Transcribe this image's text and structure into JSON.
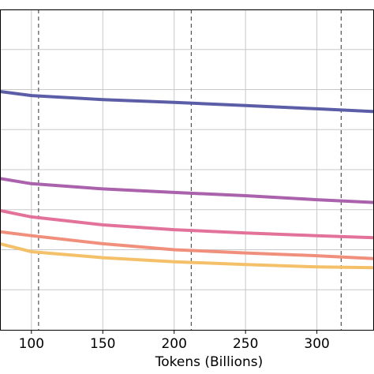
{
  "chart_data": {
    "type": "line",
    "title": "",
    "xlabel": "Tokens (Billions)",
    "ylabel": "",
    "xlim": [
      78,
      340
    ],
    "ylim": [
      0,
      8
    ],
    "x_ticks": [
      100,
      150,
      200,
      250,
      300
    ],
    "y_gridlines": [
      1,
      2,
      3,
      4,
      5,
      6,
      7,
      8
    ],
    "y_ticks_visible": false,
    "grid": true,
    "legend": "none",
    "vlines": [
      105,
      212,
      317
    ],
    "vline_color": "#555555",
    "series": [
      {
        "color": "#5b5ea6",
        "x": [
          78,
          100,
          150,
          200,
          250,
          300,
          340
        ],
        "y": [
          5.95,
          5.85,
          5.75,
          5.68,
          5.6,
          5.52,
          5.45
        ]
      },
      {
        "color": "#a962ab",
        "x": [
          78,
          100,
          150,
          200,
          250,
          300,
          340
        ],
        "y": [
          3.78,
          3.65,
          3.52,
          3.43,
          3.35,
          3.25,
          3.18
        ]
      },
      {
        "color": "#e2729a",
        "x": [
          78,
          100,
          150,
          200,
          250,
          300,
          340
        ],
        "y": [
          2.98,
          2.82,
          2.62,
          2.5,
          2.42,
          2.35,
          2.3
        ]
      },
      {
        "color": "#f0907c",
        "x": [
          78,
          100,
          150,
          200,
          250,
          300,
          340
        ],
        "y": [
          2.45,
          2.35,
          2.15,
          2.0,
          1.92,
          1.85,
          1.78
        ]
      },
      {
        "color": "#f5c06a",
        "x": [
          78,
          100,
          150,
          200,
          250,
          300,
          340
        ],
        "y": [
          2.15,
          1.95,
          1.8,
          1.7,
          1.63,
          1.57,
          1.55
        ]
      }
    ]
  }
}
